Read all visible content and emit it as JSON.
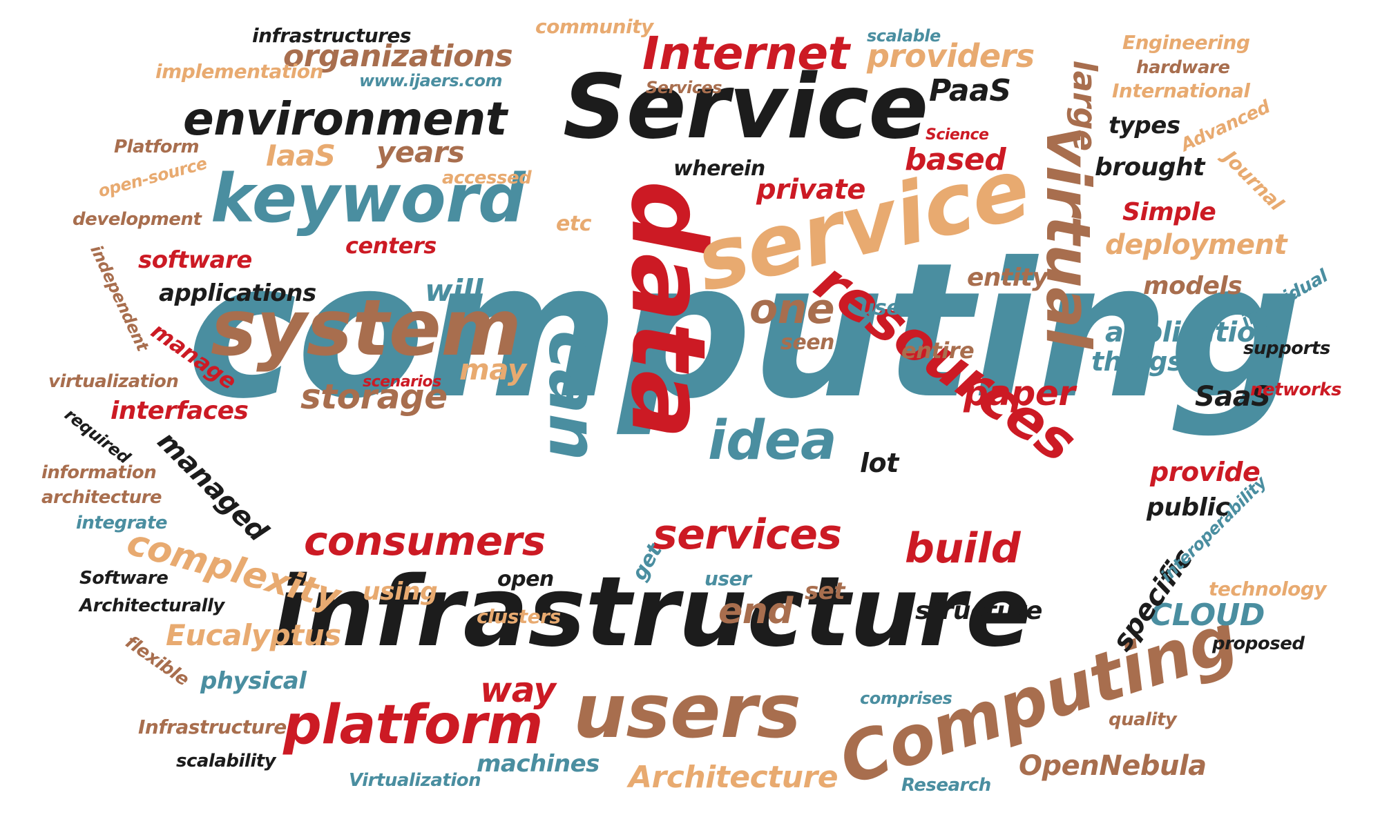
{
  "palette": {
    "teal": "#4a8ea0",
    "red": "#cc1a24",
    "black": "#1c1c1c",
    "brown": "#a86e4e",
    "tan": "#e8aa70"
  },
  "words": [
    "computing",
    "infrastructure",
    "Service",
    "data",
    "service",
    "system",
    "keyword",
    "users",
    "Computing",
    "environment",
    "resources",
    "virtual",
    "can",
    "idea",
    "platform",
    "consumers",
    "services",
    "Internet",
    "complexity",
    "build",
    "organizations",
    "providers",
    "storage",
    "one",
    "IaaS",
    "years",
    "based",
    "private",
    "wherein",
    "PaaS",
    "large",
    "brought",
    "Simple",
    "paper",
    "end",
    "Eucalyptus",
    "machines",
    "Architecture",
    "OpenNebula",
    "CLOUD",
    "application",
    "deployment",
    "models",
    "types",
    "International",
    "hardware",
    "Engineering",
    "Advanced",
    "Journal",
    "Science",
    "scalable",
    "community",
    "infrastructures",
    "implementation",
    "www.ijaers.com",
    "Services",
    "Platform",
    "open-source",
    "development",
    "independent",
    "accessed",
    "etc",
    "centers",
    "software",
    "applications",
    "will",
    "entity",
    "use",
    "seen",
    "entire",
    "things",
    "may",
    "scenarios",
    "virtualization",
    "manage",
    "interfaces",
    "required",
    "managed",
    "information",
    "architecture",
    "integrate",
    "Software",
    "Architecturally",
    "flexible",
    "physical",
    "Infrastructure",
    "scalability",
    "Virtualization",
    "way",
    "get",
    "using",
    "open",
    "user",
    "set",
    "clusters",
    "structure",
    "specific",
    "comprises",
    "Research",
    "quality",
    "proposed",
    "technology",
    "interoperability",
    "public",
    "provide",
    "lot",
    "SaaS",
    "networks",
    "supports",
    "individual"
  ]
}
